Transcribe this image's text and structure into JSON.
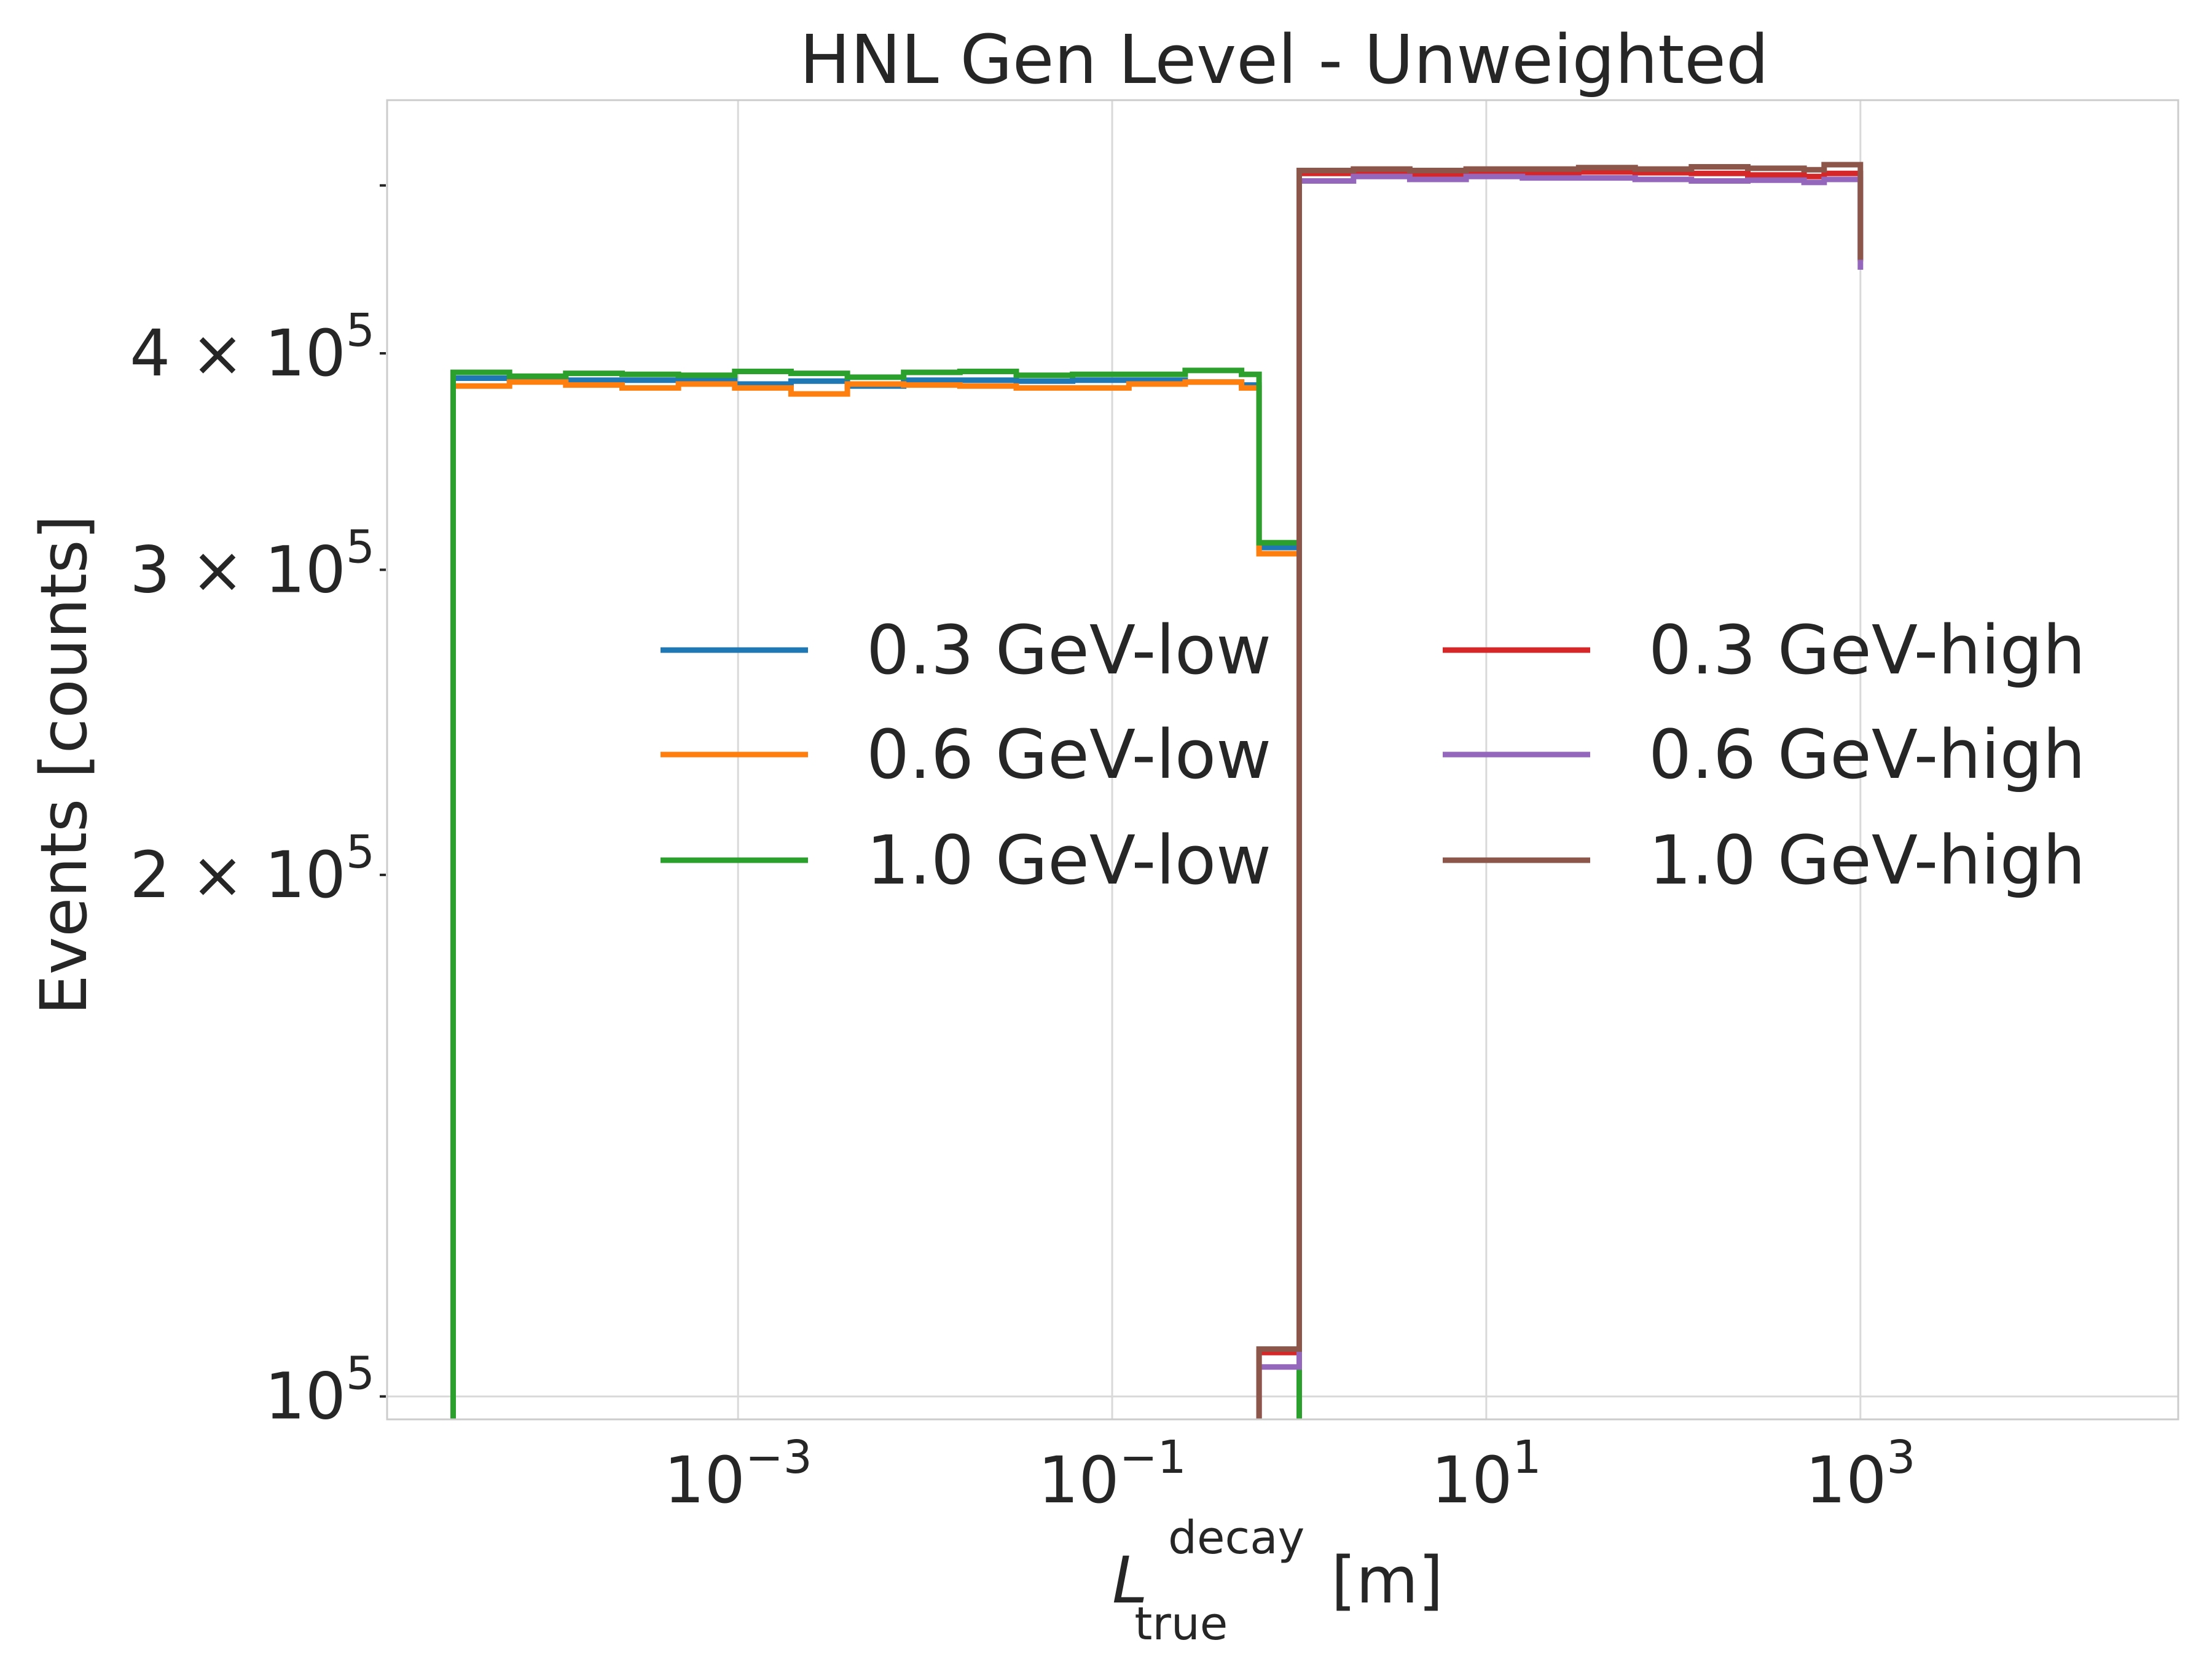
{
  "chart_data": {
    "type": "step",
    "title": "HNL Gen Level - Unweighted",
    "xlabel": {
      "base": "L",
      "sub": "true",
      "sup": "decay",
      "unit": " [m]"
    },
    "ylabel": "Events [counts]",
    "xscale": "log",
    "yscale": "log",
    "xlim": [
      1.33e-05,
      50000
    ],
    "ylim": [
      97000,
      560000
    ],
    "grid": true,
    "legend": {
      "placement": "center-right",
      "columns": 2
    },
    "x_ticks": [
      {
        "value": 0.001,
        "base": "10",
        "exp": "−3"
      },
      {
        "value": 0.1,
        "base": "10",
        "exp": "−1"
      },
      {
        "value": 10,
        "base": "10",
        "exp": "1"
      },
      {
        "value": 1000,
        "base": "10",
        "exp": "3"
      }
    ],
    "y_ticks": [
      {
        "value": 100000,
        "mant": "",
        "base": "10",
        "exp": "5"
      },
      {
        "value": 200000,
        "mant": "2 × ",
        "base": "10",
        "exp": "5"
      },
      {
        "value": 300000,
        "mant": "3 × ",
        "base": "10",
        "exp": "5"
      },
      {
        "value": 400000,
        "mant": "4 × ",
        "base": "10",
        "exp": "5"
      },
      {
        "value": 500000,
        "mant": "",
        "base": "",
        "exp": ""
      }
    ],
    "series": [
      {
        "name": "0.3 GeV-low",
        "color": "#1f77b4",
        "edges": [
          3e-05,
          6e-05,
          0.00012,
          0.00024,
          0.00048,
          0.00096,
          0.00192,
          0.00384,
          0.00768,
          0.01536,
          0.03072,
          0.06144,
          0.12288,
          0.24576,
          0.49152,
          0.61,
          1.0
        ],
        "values": [
          387000,
          386500,
          386000,
          386000,
          386500,
          384000,
          385500,
          383000,
          386000,
          386000,
          385500,
          386000,
          386000,
          385000,
          383500,
          309000
        ]
      },
      {
        "name": "0.6 GeV-low",
        "color": "#ff7f0e",
        "edges": [
          3e-05,
          6e-05,
          0.00012,
          0.00024,
          0.00048,
          0.00096,
          0.00192,
          0.00384,
          0.00768,
          0.01536,
          0.03072,
          0.06144,
          0.12288,
          0.24576,
          0.49152,
          0.61,
          1.0
        ],
        "values": [
          383000,
          385000,
          383500,
          382000,
          384000,
          382000,
          379000,
          384000,
          383500,
          383000,
          382000,
          382000,
          384000,
          385000,
          382000,
          306500
        ]
      },
      {
        "name": "1.0 GeV-low",
        "color": "#2ca02c",
        "edges": [
          3e-05,
          6e-05,
          0.00012,
          0.00024,
          0.00048,
          0.00096,
          0.00192,
          0.00384,
          0.00768,
          0.01536,
          0.03072,
          0.06144,
          0.12288,
          0.24576,
          0.49152,
          0.61,
          1.0
        ],
        "values": [
          390000,
          388000,
          389500,
          389000,
          388500,
          390500,
          389500,
          387500,
          390000,
          390500,
          388500,
          389000,
          389000,
          391000,
          389000,
          311000
        ]
      },
      {
        "name": "0.3 GeV-high",
        "color": "#d62728",
        "edges": [
          0.61,
          1.0,
          1.95,
          3.9,
          7.8,
          15.6,
          31.2,
          62.5,
          125,
          250,
          500,
          640,
          1000
        ],
        "values": [
          106000,
          508000,
          508000,
          507000,
          508000,
          508000,
          509000,
          508500,
          508000,
          507000,
          506000,
          508000,
          452000
        ]
      },
      {
        "name": "0.6 GeV-high",
        "color": "#9467bd",
        "edges": [
          0.61,
          1.0,
          1.95,
          3.9,
          7.8,
          15.6,
          31.2,
          62.5,
          125,
          250,
          500,
          640,
          1000
        ],
        "values": [
          104000,
          503000,
          506000,
          504000,
          506000,
          505000,
          505000,
          504000,
          503000,
          503500,
          502000,
          504000,
          447000
        ]
      },
      {
        "name": "1.0 GeV-high",
        "color": "#8c564b",
        "edges": [
          0.61,
          1.0,
          1.95,
          3.9,
          7.8,
          15.6,
          31.2,
          62.5,
          125,
          250,
          500,
          640,
          1000
        ],
        "values": [
          106500,
          510000,
          511000,
          510000,
          511000,
          511000,
          512000,
          511000,
          512500,
          511500,
          510500,
          514000,
          453000
        ]
      }
    ]
  }
}
